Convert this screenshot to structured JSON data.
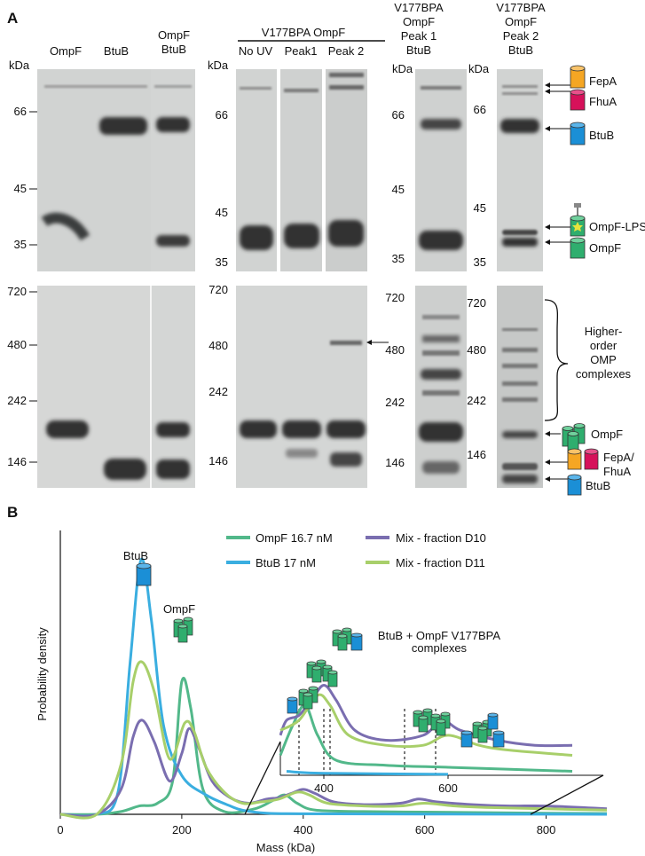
{
  "panels": {
    "a": "A",
    "b": "B"
  },
  "kda": "kDa",
  "gels": {
    "g1": {
      "lanes": [
        "OmpF",
        "BtuB"
      ],
      "top_ticks": [
        "66",
        "45",
        "35"
      ],
      "bottom_ticks": [
        "720",
        "480",
        "242",
        "146"
      ]
    },
    "g2": {
      "lanes": [
        "OmpF\nBtuB"
      ]
    },
    "g3": {
      "header": "V177BPA OmpF",
      "lanes": [
        "No UV",
        "Peak1",
        "Peak 2"
      ],
      "top_ticks": [
        "66",
        "45",
        "35"
      ],
      "bottom_ticks": [
        "720",
        "480",
        "242",
        "146"
      ]
    },
    "g4": {
      "header": "V177BPA\nOmpF\nPeak 1\nBtuB",
      "top_ticks": [
        "66",
        "45",
        "35"
      ],
      "bottom_ticks": [
        "720",
        "480",
        "242",
        "146"
      ]
    },
    "g5": {
      "header": "V177BPA\nOmpF\nPeak 2\nBtuB",
      "top_ticks": [
        "66",
        "45",
        "35"
      ],
      "bottom_ticks": [
        "720",
        "480",
        "242",
        "146"
      ]
    }
  },
  "annotations": {
    "fepa": "FepA",
    "fhua": "FhuA",
    "btub": "BtuB",
    "ompf_lps": "OmpF-LPS",
    "ompf": "OmpF",
    "higher_order": "Higher-\norder\nOMP\ncomplexes",
    "ompf_trimer": "OmpF",
    "fepa_fhua": "FepA/\nFhuA",
    "btub_bottom": "BtuB"
  },
  "colors": {
    "fepa": "#f5a623",
    "fhua": "#d6115a",
    "btub": "#1b8fd6",
    "ompf": "#2fae6e",
    "ompf_lps": "#2fae6e",
    "star": "#e8e33c",
    "series_ompf": "#52b88a",
    "series_btub": "#3aaee0",
    "series_d10": "#7a6eb0",
    "series_d11": "#a8cf6a"
  },
  "chart_data": {
    "type": "line",
    "xlabel": "Mass (kDa)",
    "ylabel": "Probability density",
    "xlim": [
      0,
      900
    ],
    "xticks": [
      "0",
      "200",
      "400",
      "600",
      "800"
    ],
    "legend_position": "top",
    "series": [
      {
        "name": "OmpF 16.7 nM",
        "color": "#52b88a",
        "points": [
          [
            0,
            0.0
          ],
          [
            60,
            0.0
          ],
          [
            100,
            0.01
          ],
          [
            130,
            0.03
          ],
          [
            160,
            0.04
          ],
          [
            185,
            0.12
          ],
          [
            200,
            0.48
          ],
          [
            215,
            0.38
          ],
          [
            235,
            0.09
          ],
          [
            270,
            0.01
          ],
          [
            320,
            0.02
          ],
          [
            350,
            0.05
          ],
          [
            370,
            0.07
          ],
          [
            390,
            0.04
          ],
          [
            420,
            0.015
          ],
          [
            500,
            0.01
          ],
          [
            600,
            0.008
          ],
          [
            700,
            0.006
          ],
          [
            800,
            0.004
          ],
          [
            900,
            0.003
          ]
        ]
      },
      {
        "name": "BtuB 17 nM",
        "color": "#3aaee0",
        "points": [
          [
            0,
            0.0
          ],
          [
            60,
            0.0
          ],
          [
            95,
            0.08
          ],
          [
            115,
            0.55
          ],
          [
            133,
            0.92
          ],
          [
            150,
            0.7
          ],
          [
            170,
            0.32
          ],
          [
            200,
            0.14
          ],
          [
            240,
            0.07
          ],
          [
            280,
            0.03
          ],
          [
            300,
            0.015
          ],
          [
            340,
            0.004
          ],
          [
            400,
            0.002
          ],
          [
            600,
            0.001
          ],
          [
            900,
            0.0
          ]
        ]
      },
      {
        "name": "Mix - fraction D10",
        "color": "#7a6eb0",
        "points": [
          [
            0,
            0.0
          ],
          [
            60,
            0.0
          ],
          [
            100,
            0.09
          ],
          [
            120,
            0.28
          ],
          [
            135,
            0.34
          ],
          [
            155,
            0.26
          ],
          [
            180,
            0.12
          ],
          [
            200,
            0.22
          ],
          [
            212,
            0.31
          ],
          [
            228,
            0.24
          ],
          [
            250,
            0.12
          ],
          [
            280,
            0.06
          ],
          [
            310,
            0.04
          ],
          [
            340,
            0.055
          ],
          [
            360,
            0.06
          ],
          [
            380,
            0.075
          ],
          [
            400,
            0.09
          ],
          [
            420,
            0.075
          ],
          [
            450,
            0.045
          ],
          [
            500,
            0.035
          ],
          [
            560,
            0.04
          ],
          [
            590,
            0.055
          ],
          [
            620,
            0.045
          ],
          [
            680,
            0.035
          ],
          [
            740,
            0.03
          ],
          [
            800,
            0.03
          ],
          [
            900,
            0.02
          ]
        ]
      },
      {
        "name": "Mix - fraction D11",
        "color": "#a8cf6a",
        "points": [
          [
            0,
            0.0
          ],
          [
            60,
            0.0
          ],
          [
            100,
            0.18
          ],
          [
            120,
            0.48
          ],
          [
            135,
            0.55
          ],
          [
            155,
            0.44
          ],
          [
            180,
            0.2
          ],
          [
            205,
            0.33
          ],
          [
            220,
            0.3
          ],
          [
            240,
            0.17
          ],
          [
            270,
            0.08
          ],
          [
            300,
            0.04
          ],
          [
            330,
            0.045
          ],
          [
            360,
            0.055
          ],
          [
            390,
            0.08
          ],
          [
            410,
            0.07
          ],
          [
            440,
            0.04
          ],
          [
            500,
            0.03
          ],
          [
            560,
            0.03
          ],
          [
            600,
            0.04
          ],
          [
            650,
            0.03
          ],
          [
            700,
            0.025
          ],
          [
            800,
            0.02
          ],
          [
            900,
            0.015
          ]
        ]
      }
    ],
    "inset": {
      "title": "BtuB + OmpF V177BPA\ncomplexes",
      "xlim": [
        330,
        850
      ],
      "xticks": [
        "400",
        "600"
      ],
      "dashed_lines": [
        360,
        400,
        410,
        530,
        580
      ]
    },
    "peak_labels": [
      {
        "label": "BtuB",
        "icon": "btub-icon"
      },
      {
        "label": "OmpF",
        "icon": "ompf-trimer-icon"
      }
    ]
  }
}
